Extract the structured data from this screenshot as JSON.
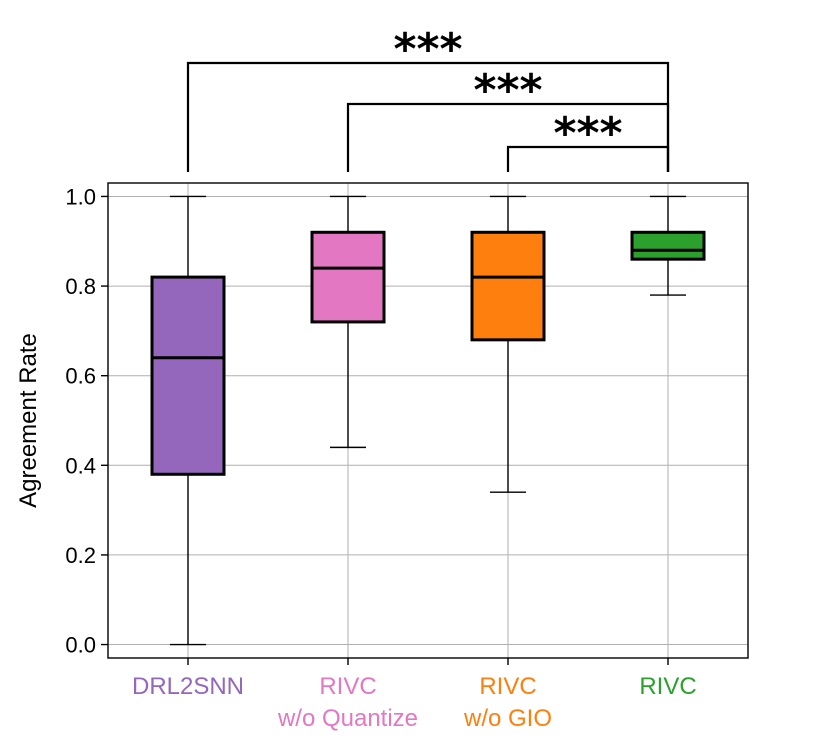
{
  "chart_data": {
    "type": "box",
    "ylabel": "Agreement Rate",
    "ylim": [
      -0.03,
      1.03
    ],
    "yticks": [
      0.0,
      0.2,
      0.4,
      0.6,
      0.8,
      1.0
    ],
    "ytick_labels": [
      "0.0",
      "0.2",
      "0.4",
      "0.6",
      "0.8",
      "1.0"
    ],
    "grid": true,
    "categories": [
      {
        "lines": [
          "DRL2SNN"
        ],
        "color": "#9467bd"
      },
      {
        "lines": [
          "RIVC",
          "w/o Quantize"
        ],
        "color": "#e377c2"
      },
      {
        "lines": [
          "RIVC",
          "w/o GIO"
        ],
        "color": "#ff7f0e"
      },
      {
        "lines": [
          "RIVC"
        ],
        "color": "#2ca02c"
      }
    ],
    "boxes": [
      {
        "whisker_low": 0.0,
        "q1": 0.38,
        "median": 0.64,
        "q3": 0.82,
        "whisker_high": 1.0
      },
      {
        "whisker_low": 0.44,
        "q1": 0.72,
        "median": 0.84,
        "q3": 0.92,
        "whisker_high": 1.0
      },
      {
        "whisker_low": 0.34,
        "q1": 0.68,
        "median": 0.82,
        "q3": 0.92,
        "whisker_high": 1.0
      },
      {
        "whisker_low": 0.78,
        "q1": 0.86,
        "median": 0.88,
        "q3": 0.92,
        "whisker_high": 1.0
      }
    ],
    "significance": [
      {
        "from": 0,
        "to": 3,
        "label": "***"
      },
      {
        "from": 1,
        "to": 3,
        "label": "***"
      },
      {
        "from": 2,
        "to": 3,
        "label": "***"
      }
    ]
  }
}
